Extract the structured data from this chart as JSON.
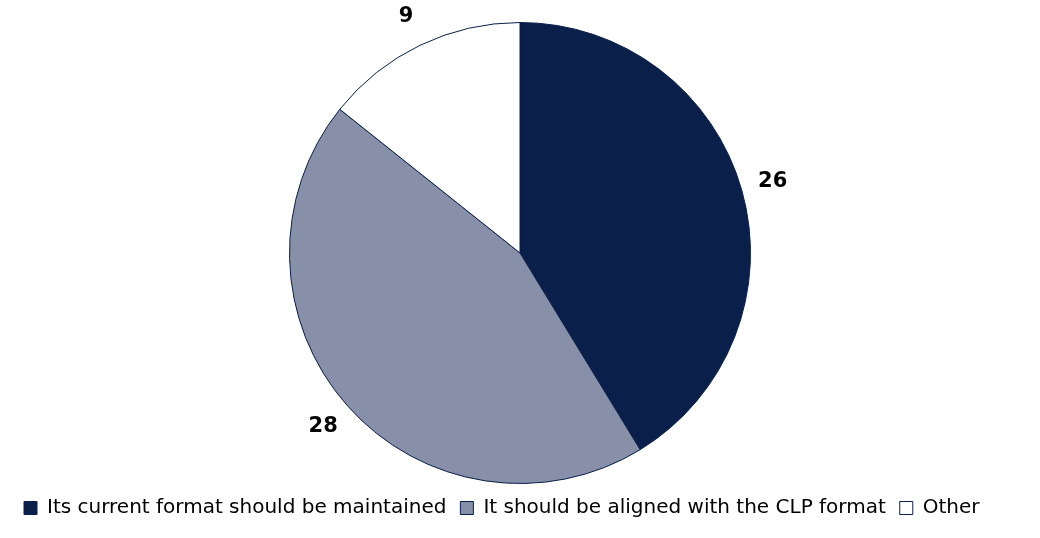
{
  "chart_data": {
    "type": "pie",
    "categories": [
      "Its current format should be maintained",
      "It should be aligned with the CLP format",
      "Other"
    ],
    "values": [
      26,
      28,
      9
    ],
    "colors": [
      "#0b1f4b",
      "#8790a8",
      "#ffffff"
    ],
    "data_labels": true,
    "legend": "bottom"
  }
}
